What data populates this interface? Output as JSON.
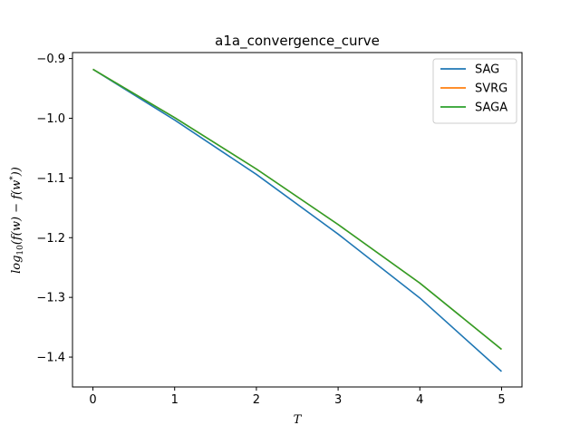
{
  "chart_data": {
    "type": "line",
    "title": "a1a_convergence_curve",
    "xlabel": "T",
    "ylabel": "log10(f(w) − f(w*))",
    "xlim": [
      -0.25,
      5.25
    ],
    "ylim": [
      -1.45,
      -0.89
    ],
    "x": [
      0,
      1,
      2,
      3,
      4,
      5
    ],
    "xticks": [
      0,
      1,
      2,
      3,
      4,
      5
    ],
    "yticks": [
      -0.9,
      -1.0,
      -1.1,
      -1.2,
      -1.3,
      -1.4
    ],
    "ytick_labels": [
      "−0.9",
      "−1.0",
      "−1.1",
      "−1.2",
      "−1.3",
      "−1.4"
    ],
    "legend_position": "top-right",
    "series": [
      {
        "name": "SAG",
        "color": "#1f77b4",
        "values": [
          -0.918,
          -1.003,
          -1.094,
          -1.194,
          -1.301,
          -1.424
        ]
      },
      {
        "name": "SVRG",
        "color": "#ff7f0e",
        "values": [
          -0.918,
          -0.999,
          -1.085,
          -1.178,
          -1.276,
          -1.387
        ]
      },
      {
        "name": "SAGA",
        "color": "#2ca02c",
        "values": [
          -0.918,
          -0.999,
          -1.085,
          -1.178,
          -1.276,
          -1.387
        ]
      }
    ]
  }
}
